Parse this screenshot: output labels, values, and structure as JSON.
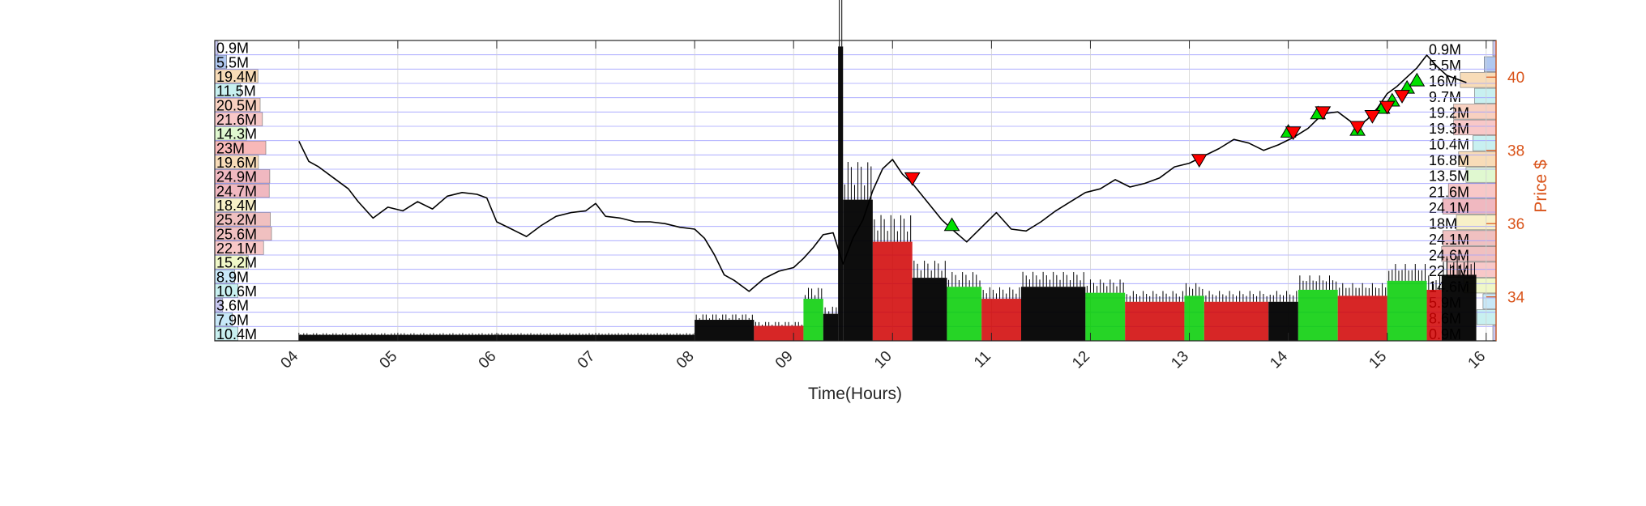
{
  "chart_data": {
    "type": "line",
    "xlabel": "Time(Hours)",
    "ylabel_right": "Price $",
    "x_ticks": [
      "04",
      "05",
      "06",
      "07",
      "08",
      "09",
      "10",
      "11",
      "12",
      "13",
      "14",
      "15",
      "16"
    ],
    "xlim": [
      3.15,
      16.1
    ],
    "price_ylim": [
      32.8,
      41.0
    ],
    "price_ticks": [
      34,
      36,
      38,
      40
    ],
    "grid": true,
    "colors": {
      "price_line": "#000000",
      "buy_marker": "#00e000",
      "sell_marker": "#ff0000",
      "grid": "#a0a0ff",
      "right_axis": "#d95319",
      "volume_base": "#000000",
      "volume_up": "#00cc00",
      "volume_down": "#d00000"
    },
    "volume_profile_left": [
      {
        "label": "0.9M",
        "rel": 0.04,
        "color": "#c8c8f0"
      },
      {
        "label": "5.5M",
        "rel": 0.21,
        "color": "#b0c8f0"
      },
      {
        "label": "19.4M",
        "rel": 0.76,
        "color": "#f8dcb8"
      },
      {
        "label": "11.5M",
        "rel": 0.45,
        "color": "#c8f0f0"
      },
      {
        "label": "20.5M",
        "rel": 0.8,
        "color": "#f8d0c0"
      },
      {
        "label": "21.6M",
        "rel": 0.84,
        "color": "#f8c8c8"
      },
      {
        "label": "14.3M",
        "rel": 0.56,
        "color": "#e0f8d0"
      },
      {
        "label": "23M",
        "rel": 0.9,
        "color": "#f8b8b8"
      },
      {
        "label": "19.6M",
        "rel": 0.77,
        "color": "#f8dcb8"
      },
      {
        "label": "24.9M",
        "rel": 0.97,
        "color": "#f0b8c0"
      },
      {
        "label": "24.7M",
        "rel": 0.96,
        "color": "#f0b8c0"
      },
      {
        "label": "18.4M",
        "rel": 0.72,
        "color": "#f8f0c8"
      },
      {
        "label": "25.2M",
        "rel": 0.98,
        "color": "#f0c0c0"
      },
      {
        "label": "25.6M",
        "rel": 1.0,
        "color": "#f0c0c0"
      },
      {
        "label": "22.1M",
        "rel": 0.86,
        "color": "#f8c8c8"
      },
      {
        "label": "15.2M",
        "rel": 0.59,
        "color": "#f0f8c8"
      },
      {
        "label": "8.9M",
        "rel": 0.35,
        "color": "#c8e8f8"
      },
      {
        "label": "10.6M",
        "rel": 0.41,
        "color": "#c8f0f0"
      },
      {
        "label": "3.6M",
        "rel": 0.14,
        "color": "#c8c8f0"
      },
      {
        "label": "7.9M",
        "rel": 0.31,
        "color": "#c8e8f8"
      },
      {
        "label": "10.4M",
        "rel": 0.41,
        "color": "#c8f0f0"
      }
    ],
    "volume_profile_right": [
      {
        "label": "0.9M",
        "rel": 0.04,
        "color": "#c8c8f0"
      },
      {
        "label": "5.5M",
        "rel": 0.21,
        "color": "#b0c8f0"
      },
      {
        "label": "16M",
        "rel": 0.63,
        "color": "#f8dcb8"
      },
      {
        "label": "9.7M",
        "rel": 0.38,
        "color": "#c8f0f0"
      },
      {
        "label": "19.2M",
        "rel": 0.75,
        "color": "#f8d0c0"
      },
      {
        "label": "19.3M",
        "rel": 0.75,
        "color": "#f8c8c8"
      },
      {
        "label": "10.4M",
        "rel": 0.41,
        "color": "#c8f0f0"
      },
      {
        "label": "16.8M",
        "rel": 0.66,
        "color": "#f8dcb8"
      },
      {
        "label": "13.5M",
        "rel": 0.53,
        "color": "#e0f8d0"
      },
      {
        "label": "21.6M",
        "rel": 0.84,
        "color": "#f8c8c8"
      },
      {
        "label": "24.1M",
        "rel": 0.94,
        "color": "#f0b8c0"
      },
      {
        "label": "18M",
        "rel": 0.7,
        "color": "#f8f0c8"
      },
      {
        "label": "24.1M",
        "rel": 0.94,
        "color": "#f0c0c0"
      },
      {
        "label": "24.6M",
        "rel": 0.96,
        "color": "#f0c0c0"
      },
      {
        "label": "22.1M",
        "rel": 0.86,
        "color": "#f8c8c8"
      },
      {
        "label": "14.6M",
        "rel": 0.57,
        "color": "#f0f8c8"
      },
      {
        "label": "5.9M",
        "rel": 0.23,
        "color": "#c8e8f8"
      },
      {
        "label": "8.6M",
        "rel": 0.34,
        "color": "#c8f0f0"
      },
      {
        "label": "0.9M",
        "rel": 0.04,
        "color": "#c8c8f0"
      }
    ],
    "price_series": [
      {
        "t": 4.0,
        "p": 38.25
      },
      {
        "t": 4.1,
        "p": 37.7
      },
      {
        "t": 4.2,
        "p": 37.55
      },
      {
        "t": 4.35,
        "p": 37.25
      },
      {
        "t": 4.5,
        "p": 36.95
      },
      {
        "t": 4.6,
        "p": 36.6
      },
      {
        "t": 4.75,
        "p": 36.15
      },
      {
        "t": 4.9,
        "p": 36.45
      },
      {
        "t": 5.05,
        "p": 36.35
      },
      {
        "t": 5.2,
        "p": 36.6
      },
      {
        "t": 5.35,
        "p": 36.4
      },
      {
        "t": 5.5,
        "p": 36.75
      },
      {
        "t": 5.65,
        "p": 36.85
      },
      {
        "t": 5.8,
        "p": 36.8
      },
      {
        "t": 5.9,
        "p": 36.7
      },
      {
        "t": 6.0,
        "p": 36.05
      },
      {
        "t": 6.15,
        "p": 35.85
      },
      {
        "t": 6.3,
        "p": 35.65
      },
      {
        "t": 6.45,
        "p": 35.95
      },
      {
        "t": 6.6,
        "p": 36.2
      },
      {
        "t": 6.75,
        "p": 36.3
      },
      {
        "t": 6.9,
        "p": 36.35
      },
      {
        "t": 7.0,
        "p": 36.55
      },
      {
        "t": 7.1,
        "p": 36.2
      },
      {
        "t": 7.25,
        "p": 36.15
      },
      {
        "t": 7.4,
        "p": 36.05
      },
      {
        "t": 7.55,
        "p": 36.05
      },
      {
        "t": 7.7,
        "p": 36.0
      },
      {
        "t": 7.85,
        "p": 35.9
      },
      {
        "t": 8.0,
        "p": 35.85
      },
      {
        "t": 8.1,
        "p": 35.6
      },
      {
        "t": 8.2,
        "p": 35.15
      },
      {
        "t": 8.3,
        "p": 34.6
      },
      {
        "t": 8.4,
        "p": 34.45
      },
      {
        "t": 8.55,
        "p": 34.15
      },
      {
        "t": 8.7,
        "p": 34.5
      },
      {
        "t": 8.85,
        "p": 34.7
      },
      {
        "t": 9.0,
        "p": 34.8
      },
      {
        "t": 9.1,
        "p": 35.05
      },
      {
        "t": 9.2,
        "p": 35.35
      },
      {
        "t": 9.3,
        "p": 35.7
      },
      {
        "t": 9.4,
        "p": 35.75
      },
      {
        "t": 9.5,
        "p": 34.9
      },
      {
        "t": 9.6,
        "p": 35.6
      },
      {
        "t": 9.7,
        "p": 36.1
      },
      {
        "t": 9.8,
        "p": 36.9
      },
      {
        "t": 9.9,
        "p": 37.5
      },
      {
        "t": 10.0,
        "p": 37.75
      },
      {
        "t": 10.1,
        "p": 37.35
      },
      {
        "t": 10.2,
        "p": 37.1
      },
      {
        "t": 10.35,
        "p": 36.6
      },
      {
        "t": 10.5,
        "p": 36.1
      },
      {
        "t": 10.6,
        "p": 35.85
      },
      {
        "t": 10.75,
        "p": 35.5
      },
      {
        "t": 10.9,
        "p": 35.9
      },
      {
        "t": 11.05,
        "p": 36.3
      },
      {
        "t": 11.2,
        "p": 35.85
      },
      {
        "t": 11.35,
        "p": 35.8
      },
      {
        "t": 11.5,
        "p": 36.05
      },
      {
        "t": 11.65,
        "p": 36.35
      },
      {
        "t": 11.8,
        "p": 36.6
      },
      {
        "t": 11.95,
        "p": 36.85
      },
      {
        "t": 12.1,
        "p": 36.95
      },
      {
        "t": 12.25,
        "p": 37.2
      },
      {
        "t": 12.4,
        "p": 37.0
      },
      {
        "t": 12.55,
        "p": 37.1
      },
      {
        "t": 12.7,
        "p": 37.25
      },
      {
        "t": 12.85,
        "p": 37.55
      },
      {
        "t": 13.0,
        "p": 37.65
      },
      {
        "t": 13.15,
        "p": 37.85
      },
      {
        "t": 13.3,
        "p": 38.05
      },
      {
        "t": 13.45,
        "p": 38.3
      },
      {
        "t": 13.6,
        "p": 38.2
      },
      {
        "t": 13.75,
        "p": 38.0
      },
      {
        "t": 13.9,
        "p": 38.15
      },
      {
        "t": 14.05,
        "p": 38.35
      },
      {
        "t": 14.2,
        "p": 38.6
      },
      {
        "t": 14.35,
        "p": 39.0
      },
      {
        "t": 14.5,
        "p": 39.05
      },
      {
        "t": 14.6,
        "p": 38.85
      },
      {
        "t": 14.7,
        "p": 38.65
      },
      {
        "t": 14.8,
        "p": 38.85
      },
      {
        "t": 14.9,
        "p": 39.15
      },
      {
        "t": 15.0,
        "p": 39.55
      },
      {
        "t": 15.1,
        "p": 39.75
      },
      {
        "t": 15.2,
        "p": 40.0
      },
      {
        "t": 15.3,
        "p": 40.25
      },
      {
        "t": 15.4,
        "p": 40.6
      },
      {
        "t": 15.5,
        "p": 40.3
      },
      {
        "t": 15.6,
        "p": 40.05
      },
      {
        "t": 15.7,
        "p": 39.95
      },
      {
        "t": 15.8,
        "p": 39.85
      }
    ],
    "buy_markers": [
      {
        "t": 10.6,
        "p": 35.95
      },
      {
        "t": 14.0,
        "p": 38.5
      },
      {
        "t": 14.3,
        "p": 39.0
      },
      {
        "t": 14.7,
        "p": 38.55
      },
      {
        "t": 14.95,
        "p": 39.15
      },
      {
        "t": 15.05,
        "p": 39.35
      },
      {
        "t": 15.2,
        "p": 39.7
      },
      {
        "t": 15.3,
        "p": 39.9
      }
    ],
    "sell_markers": [
      {
        "t": 10.2,
        "p": 37.25
      },
      {
        "t": 13.1,
        "p": 37.75
      },
      {
        "t": 14.05,
        "p": 38.5
      },
      {
        "t": 14.35,
        "p": 39.05
      },
      {
        "t": 14.7,
        "p": 38.65
      },
      {
        "t": 14.85,
        "p": 38.95
      },
      {
        "t": 15.0,
        "p": 39.2
      },
      {
        "t": 15.15,
        "p": 39.5
      }
    ],
    "volume_segments": [
      {
        "t0": 4.0,
        "t1": 8.0,
        "rel": 0.02,
        "color": "#000000"
      },
      {
        "t0": 8.0,
        "t1": 8.6,
        "rel": 0.07,
        "color": "#000000"
      },
      {
        "t0": 8.6,
        "t1": 9.1,
        "rel": 0.05,
        "color": "#d00000"
      },
      {
        "t0": 9.1,
        "t1": 9.3,
        "rel": 0.14,
        "color": "#00cc00"
      },
      {
        "t0": 9.3,
        "t1": 9.45,
        "rel": 0.09,
        "color": "#000000"
      },
      {
        "t0": 9.45,
        "t1": 9.5,
        "rel": 0.98,
        "color": "#000000"
      },
      {
        "t0": 9.5,
        "t1": 9.8,
        "rel": 0.47,
        "color": "#000000"
      },
      {
        "t0": 9.8,
        "t1": 10.2,
        "rel": 0.33,
        "color": "#d00000"
      },
      {
        "t0": 10.2,
        "t1": 10.55,
        "rel": 0.21,
        "color": "#000000"
      },
      {
        "t0": 10.55,
        "t1": 10.9,
        "rel": 0.18,
        "color": "#00cc00"
      },
      {
        "t0": 10.9,
        "t1": 11.3,
        "rel": 0.14,
        "color": "#d00000"
      },
      {
        "t0": 11.3,
        "t1": 11.95,
        "rel": 0.18,
        "color": "#000000"
      },
      {
        "t0": 11.95,
        "t1": 12.35,
        "rel": 0.16,
        "color": "#00cc00"
      },
      {
        "t0": 12.35,
        "t1": 12.95,
        "rel": 0.13,
        "color": "#d00000"
      },
      {
        "t0": 12.95,
        "t1": 13.15,
        "rel": 0.15,
        "color": "#00cc00"
      },
      {
        "t0": 13.15,
        "t1": 13.8,
        "rel": 0.13,
        "color": "#d00000"
      },
      {
        "t0": 13.8,
        "t1": 14.1,
        "rel": 0.13,
        "color": "#000000"
      },
      {
        "t0": 14.1,
        "t1": 14.5,
        "rel": 0.17,
        "color": "#00cc00"
      },
      {
        "t0": 14.5,
        "t1": 15.0,
        "rel": 0.15,
        "color": "#d00000"
      },
      {
        "t0": 15.0,
        "t1": 15.4,
        "rel": 0.2,
        "color": "#00cc00"
      },
      {
        "t0": 15.4,
        "t1": 15.55,
        "rel": 0.17,
        "color": "#d00000"
      },
      {
        "t0": 15.55,
        "t1": 15.9,
        "rel": 0.22,
        "color": "#000000"
      }
    ]
  }
}
